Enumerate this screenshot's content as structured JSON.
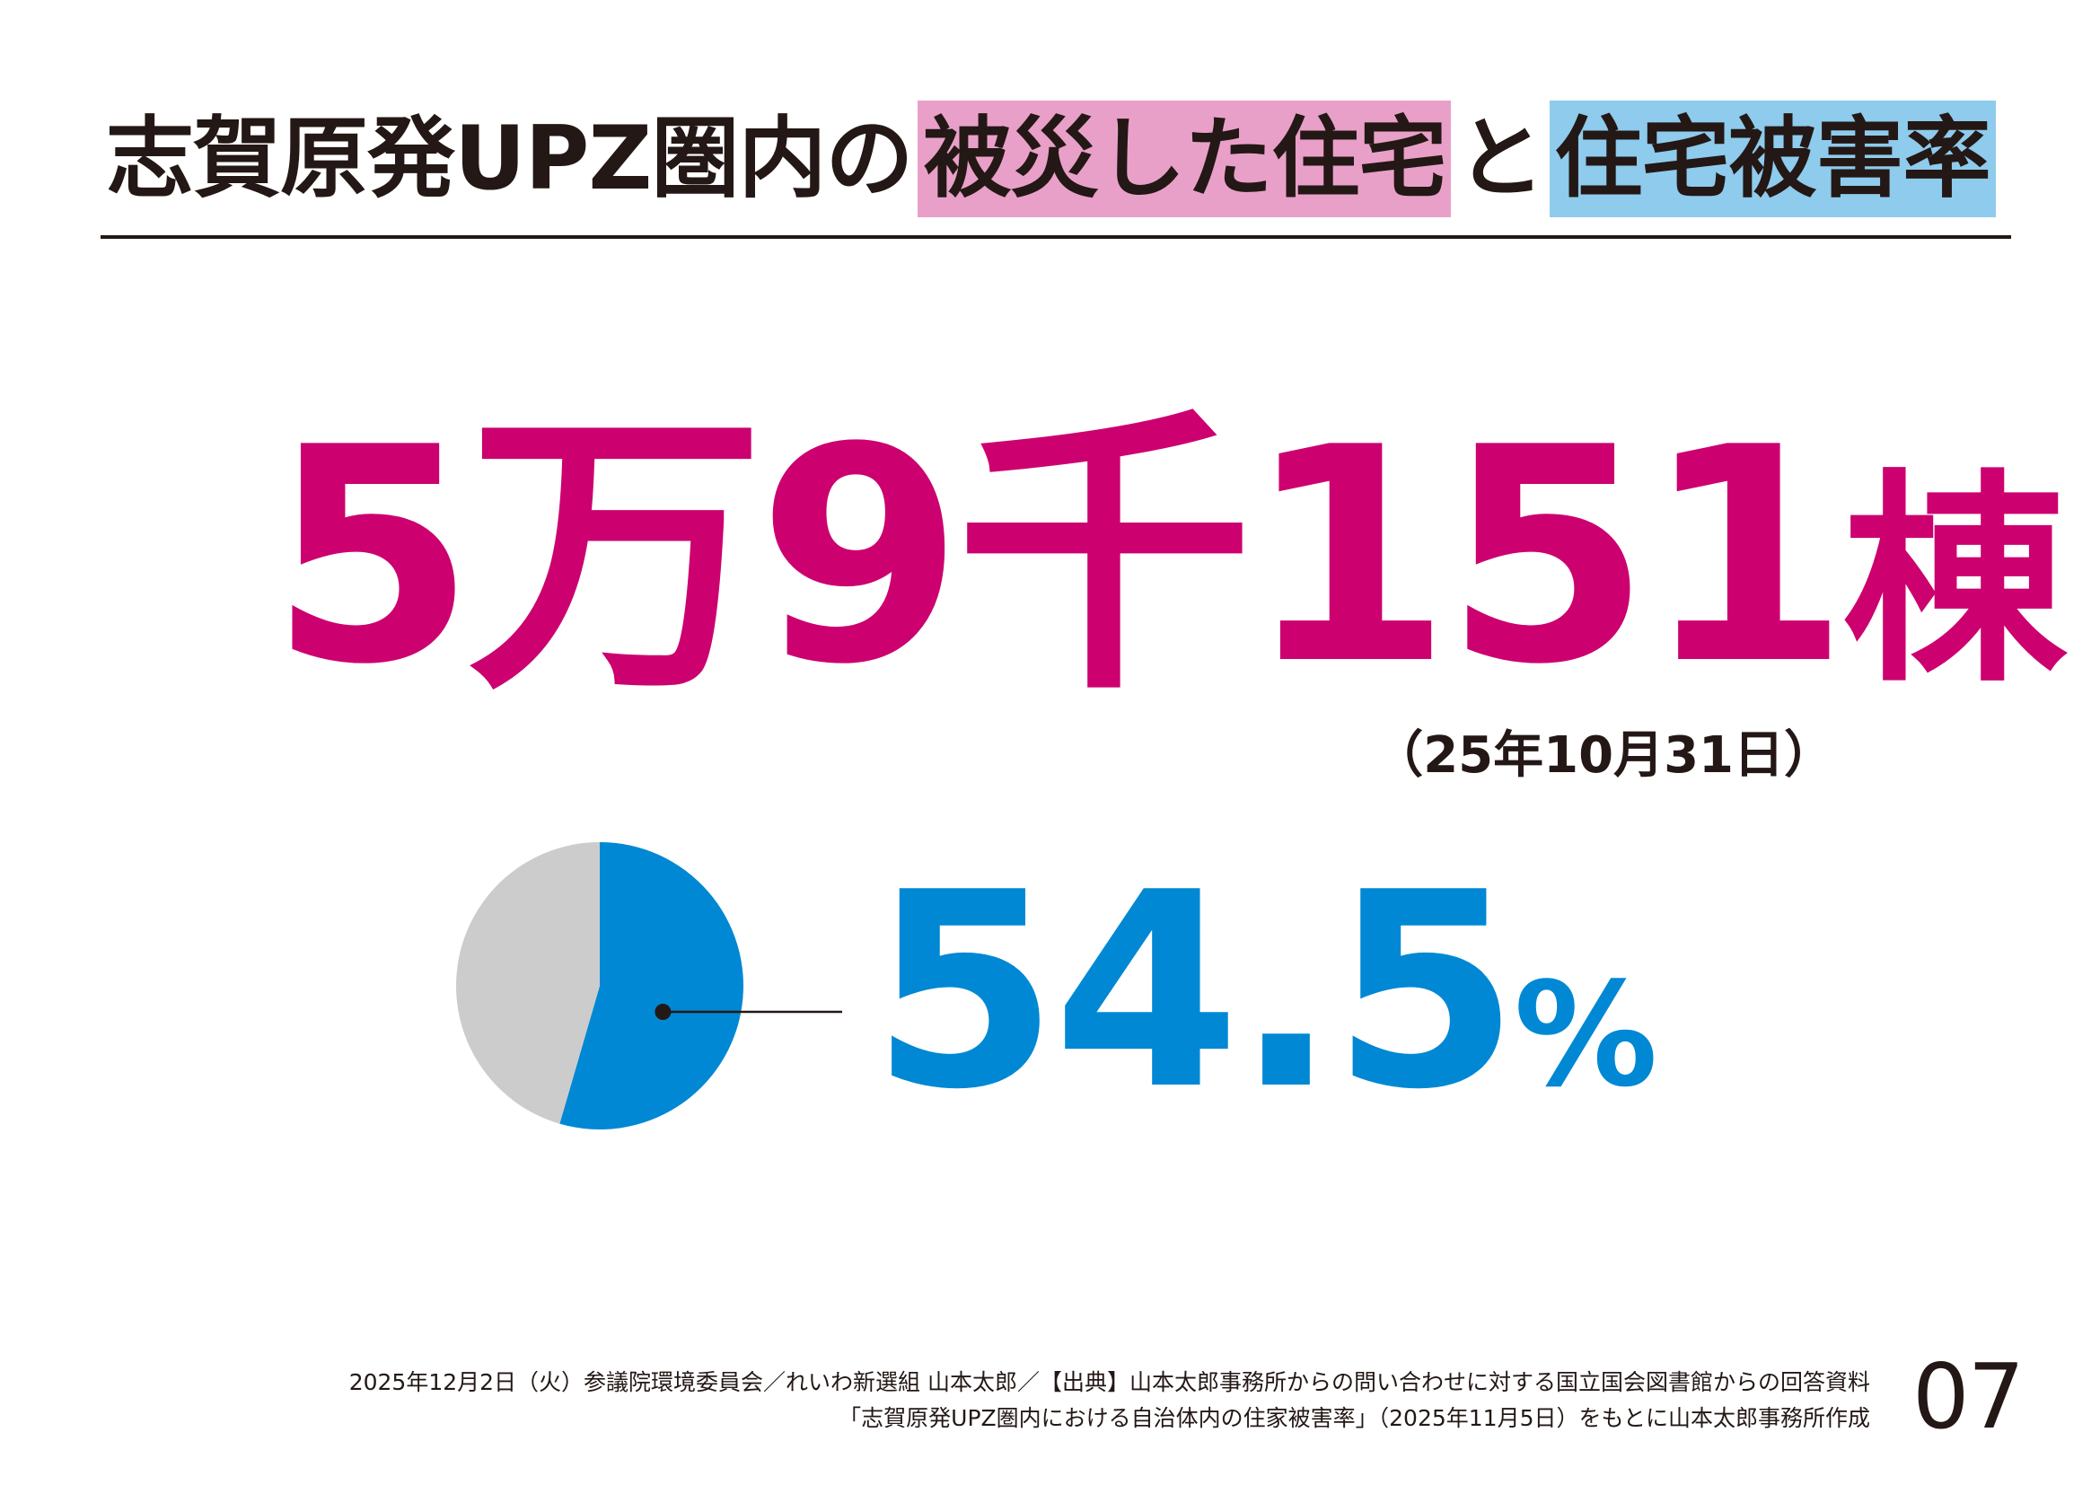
{
  "title": {
    "prefix": "志賀原発UPZ圏内の",
    "highlight1": "被災した住宅",
    "connector": "と",
    "highlight2": "住宅被害率"
  },
  "headline": {
    "number": "5万9千151",
    "unit": "棟",
    "date_note": "（25年10月31日）"
  },
  "percent": {
    "value": "54.5",
    "unit": "%"
  },
  "colors": {
    "magenta": "#cc006f",
    "blue": "#0088d4",
    "gray": "#cccccc"
  },
  "chart_data": {
    "type": "pie",
    "slices": [
      {
        "label": "住宅被害率",
        "value": 54.5,
        "color": "#0088d4"
      },
      {
        "label": "",
        "value": 45.5,
        "color": "#cccccc"
      }
    ],
    "annotations": [
      "54.5%"
    ]
  },
  "footer": {
    "line1": "2025年12月2日（火）参議院環境委員会／れいわ新選組 山本太郎／【出典】山本太郎事務所からの問い合わせに対する国立国会図書館からの回答資料",
    "line2": "「志賀原発UPZ圏内における自治体内の住家被害率」（2025年11月5日）をもとに山本太郎事務所作成",
    "page": "07"
  }
}
